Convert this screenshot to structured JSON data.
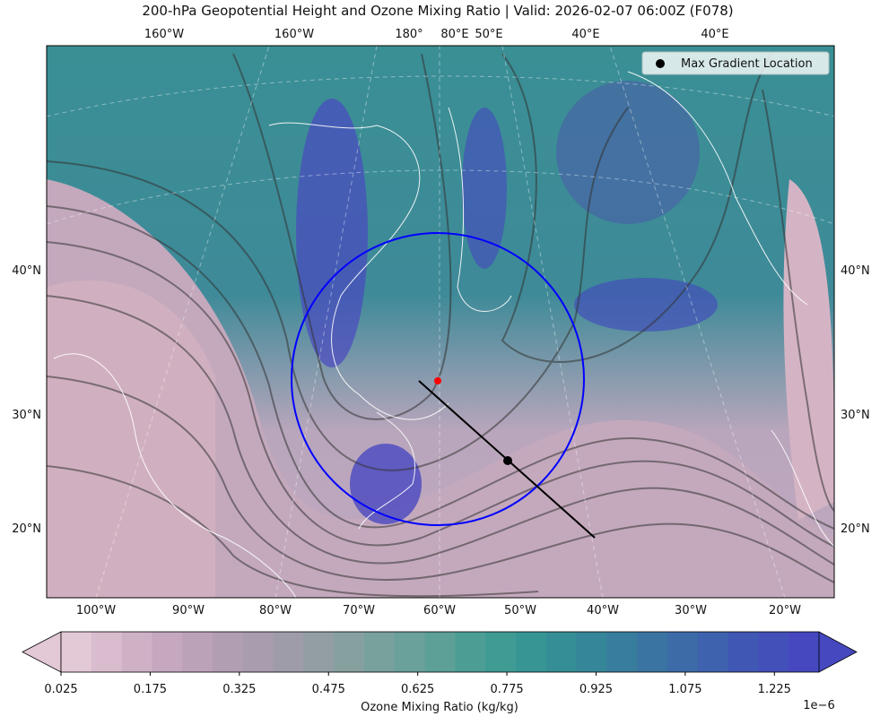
{
  "title": "200-hPa Geopotential Height and Ozone Mixing Ratio   |  Valid: 2026-02-07 06:00Z (F078)",
  "top_lon_labels": [
    "160°W",
    "160°W",
    "180°",
    "80°E",
    "50°E",
    "40°E",
    "40°E"
  ],
  "bottom_lon_labels": [
    "100°W",
    "90°W",
    "80°W",
    "70°W",
    "60°W",
    "50°W",
    "40°W",
    "30°W",
    "20°W"
  ],
  "left_lat_labels": [
    "40°N",
    "30°N",
    "20°N"
  ],
  "right_lat_labels": [
    "40°N",
    "30°N",
    "20°N"
  ],
  "legend": {
    "label": "Max Gradient Location"
  },
  "colorbar": {
    "label": "Ozone Mixing Ratio (kg/kg)",
    "offset_label": "1e−6",
    "clim": [
      0.025,
      1.3
    ],
    "ticks": [
      0.025,
      0.175,
      0.325,
      0.475,
      0.625,
      0.775,
      0.925,
      1.075,
      1.225
    ],
    "colors": [
      "#e3c8d6",
      "#d9bccd",
      "#cfb1c6",
      "#c5a8bf",
      "#bca2b9",
      "#b29eb3",
      "#a89cae",
      "#9e9ca8",
      "#929ea3",
      "#86a0a0",
      "#78a19d",
      "#6aa19a",
      "#5ca097",
      "#4c9e95",
      "#3f9b94",
      "#379594",
      "#358e96",
      "#368699",
      "#387d9d",
      "#3a74a2",
      "#3c6ba7",
      "#3e62ad",
      "#4058b3",
      "#4350b9",
      "#4648bf"
    ]
  }
}
